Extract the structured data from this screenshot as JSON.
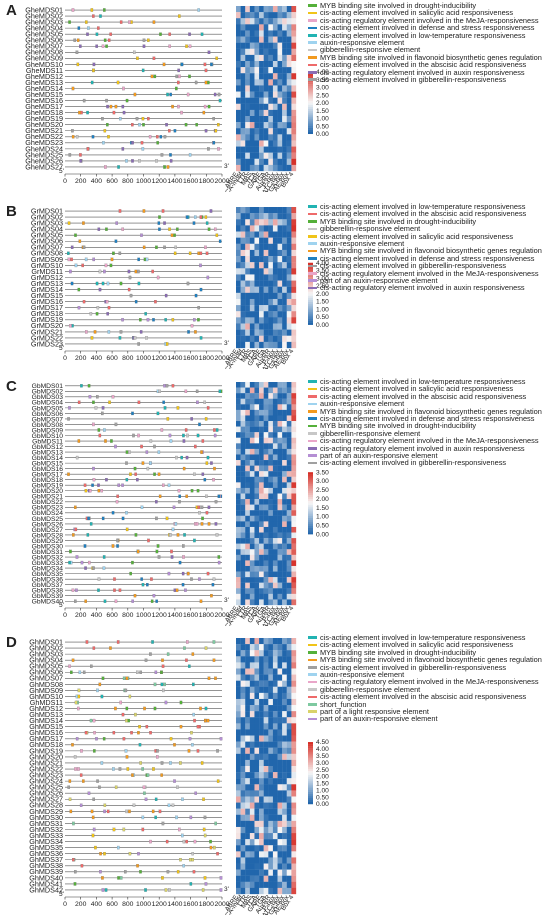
{
  "panels": [
    {
      "letter": "A",
      "genes": [
        "GheMDS01",
        "GheMDS02",
        "GheMDS03",
        "GheMDS04",
        "GheMDS05",
        "GheMDS06",
        "GheMDS07",
        "GheMDS08",
        "GheMDS09",
        "GheMDS10",
        "GheMDS11",
        "GheMDS12",
        "GheMDS13",
        "GheMDS14",
        "GheMDS15",
        "GheMDS16",
        "GheMDS17",
        "GheMDS18",
        "GheMDS19",
        "GheMDS20",
        "GheMDS21",
        "GheMDS22",
        "GheMDS23",
        "GheMDS24",
        "GheMDS25",
        "GheMDS26",
        "GheMDS27"
      ],
      "elements": [
        "ABRE",
        "CGTCA-motif",
        "LTR",
        "MBS",
        "TCA",
        "GARE",
        "TGA",
        "AuxRR",
        "P-box",
        "TATC-box",
        "TGA-box",
        "AE-box",
        "Box 4"
      ],
      "scale_ticks": [
        "0",
        "200",
        "400",
        "600",
        "800",
        "1000",
        "1200",
        "1400",
        "1600",
        "1800",
        "2000"
      ],
      "end5": "5'",
      "end3": "3'",
      "legend": [
        {
          "label": "MYB binding site involved in drought-inducibility",
          "color": "#55b03a"
        },
        {
          "label": "cis-acting element involved in salicylic acid responsiveness",
          "color": "#f0c419"
        },
        {
          "label": "cis-acting regulatory element involved in the MeJA-responsiveness",
          "color": "#e9a6c9"
        },
        {
          "label": "cis-acting element involved in defense and stress responsiveness",
          "color": "#1f7fc0"
        },
        {
          "label": "cis-acting element involved in low-temperature responsiveness",
          "color": "#21b3b2"
        },
        {
          "label": "auxin-responsive element",
          "color": "#9fd3ef"
        },
        {
          "label": "gibberellin-responsive element",
          "color": "#c7c7c7"
        },
        {
          "label": "MYB binding site involved in flavonoid biosynthetic genes regulation",
          "color": "#f29a1f"
        },
        {
          "label": "cis-acting element involved in the abscisic acid responsiveness",
          "color": "#ee6a6a"
        },
        {
          "label": "cis-acting regulatory element involved in auxin responsiveness",
          "color": "#8a6cb4"
        },
        {
          "label": "cis-acting element involved in gibberellin-responsiveness",
          "color": "#a0a0a0"
        }
      ],
      "colorbar": [
        "4.00",
        "3.50",
        "3.00",
        "2.50",
        "2.00",
        "1.50",
        "1.00",
        "0.50",
        "0.00"
      ],
      "colorbar_max": 4.0
    },
    {
      "letter": "B",
      "genes": [
        "GrMDS01",
        "GrMDS02",
        "GrMDS03",
        "GrMDS04",
        "GrMDS05",
        "GrMDS06",
        "GrMDS07",
        "GrMDS08",
        "GrMDS09",
        "GrMDS10",
        "GrMDS11",
        "GrMDS12",
        "GrMDS13",
        "GrMDS14",
        "GrMDS15",
        "GrMDS16",
        "GrMDS17",
        "GrMDS18",
        "GrMDS19",
        "GrMDS20",
        "GrMDS21",
        "GrMDS22",
        "GrMDS23"
      ],
      "elements": [
        "ABRE",
        "CGTCA-motif",
        "LTR",
        "MBS",
        "TCA",
        "GARE",
        "TGA",
        "AuxRR",
        "P-box",
        "TATC-box",
        "TGA-box",
        "AE-box",
        "Box 4"
      ],
      "scale_ticks": [
        "0",
        "200",
        "400",
        "600",
        "800",
        "1000",
        "1200",
        "1400",
        "1600",
        "1800",
        "2000"
      ],
      "end5": "5'",
      "end3": "3'",
      "legend": [
        {
          "label": "cis-acting element involved in low-temperature responsiveness",
          "color": "#21b3b2"
        },
        {
          "label": "cis-acting element involved in the abscisic acid responsiveness",
          "color": "#ee6a6a"
        },
        {
          "label": "MYB binding site involved in drought-inducibility",
          "color": "#55b03a"
        },
        {
          "label": "gibberellin-responsive element",
          "color": "#c7c7c7"
        },
        {
          "label": "cis-acting element involved in salicylic acid responsiveness",
          "color": "#f0c419"
        },
        {
          "label": "auxin-responsive element",
          "color": "#9fd3ef"
        },
        {
          "label": "MYB binding site involved in flavonoid biosynthetic genes regulation",
          "color": "#f29a1f"
        },
        {
          "label": "cis-acting element involved in defense and stress responsiveness",
          "color": "#1f7fc0"
        },
        {
          "label": "cis-acting element involved in gibberellin-responsiveness",
          "color": "#a0a0a0"
        },
        {
          "label": "cis-acting regulatory element involved in the MeJA-responsiveness",
          "color": "#e9a6c9"
        },
        {
          "label": "part of an auxin-responsive element",
          "color": "#b58fd4"
        },
        {
          "label": "cis-acting regulatory element involved in auxin responsiveness",
          "color": "#8a6cb4"
        }
      ],
      "colorbar": [
        "4.00",
        "3.50",
        "3.00",
        "2.50",
        "2.00",
        "1.50",
        "1.00",
        "0.50",
        "0.00"
      ],
      "colorbar_max": 4.0
    },
    {
      "letter": "C",
      "genes": [
        "GbMDS01",
        "GbMDS02",
        "GbMDS03",
        "GbMDS04",
        "GbMDS05",
        "GbMDS06",
        "GbMDS07",
        "GbMDS08",
        "GbMDS09",
        "GbMDS10",
        "GbMDS11",
        "GbMDS12",
        "GbMDS13",
        "GbMDS14",
        "GbMDS15",
        "GbMDS16",
        "GbMDS17",
        "GbMDS18",
        "GbMDS19",
        "GbMDS20",
        "GbMDS21",
        "GbMDS22",
        "GbMDS23",
        "GbMDS24",
        "GbMDS25",
        "GbMDS26",
        "GbMDS27",
        "GbMDS28",
        "GbMDS29",
        "GbMDS30",
        "GbMDS31",
        "GbMDS32",
        "GbMDS33",
        "GbMDS34",
        "GbMDS35",
        "GbMDS36",
        "GbMDS37",
        "GbMDS38",
        "GbMDS39",
        "GbMDS40"
      ],
      "elements": [
        "ABRE",
        "CGTCA-motif",
        "LTR",
        "MBS",
        "TCA",
        "GARE",
        "TGA",
        "AuxRR",
        "P-box",
        "TATC-box",
        "TGA-box",
        "AE-box",
        "Box 4"
      ],
      "scale_ticks": [
        "0",
        "200",
        "400",
        "600",
        "800",
        "1000",
        "1200",
        "1400",
        "1600",
        "1800",
        "2000"
      ],
      "end5": "5'",
      "end3": "3'",
      "legend": [
        {
          "label": "cis-acting element involved in low-temperature responsiveness",
          "color": "#21b3b2"
        },
        {
          "label": "cis-acting element involved in salicylic acid responsiveness",
          "color": "#f0c419"
        },
        {
          "label": "cis-acting element involved in the abscisic acid responsiveness",
          "color": "#ee6a6a"
        },
        {
          "label": "auxin-responsive element",
          "color": "#9fd3ef"
        },
        {
          "label": "MYB binding site involved in flavonoid biosynthetic genes regulation",
          "color": "#f29a1f"
        },
        {
          "label": "cis-acting element involved in defense and stress responsiveness",
          "color": "#1f7fc0"
        },
        {
          "label": "MYB binding site involved in drought-inducibility",
          "color": "#55b03a"
        },
        {
          "label": "gibberellin-responsive element",
          "color": "#c7c7c7"
        },
        {
          "label": "cis-acting regulatory element involved in the MeJA-responsiveness",
          "color": "#e9a6c9"
        },
        {
          "label": "cis-acting regulatory element involved in auxin responsiveness",
          "color": "#8a6cb4"
        },
        {
          "label": "part of an auxin-responsive element",
          "color": "#b58fd4"
        },
        {
          "label": "cis-acting element involved in gibberellin-responsiveness",
          "color": "#a0a0a0"
        }
      ],
      "colorbar": [
        "3.50",
        "3.00",
        "2.50",
        "2.00",
        "1.50",
        "1.00",
        "0.50",
        "0.00"
      ],
      "colorbar_max": 3.5
    },
    {
      "letter": "D",
      "genes": [
        "GhMDS01",
        "GhMDS02",
        "GhMDS03",
        "GhMDS04",
        "GhMDS05",
        "GhMDS06",
        "GhMDS07",
        "GhMDS08",
        "GhMDS09",
        "GhMDS10",
        "GhMDS11",
        "GhMDS12",
        "GhMDS13",
        "GhMDS14",
        "GhMDS15",
        "GhMDS16",
        "GhMDS17",
        "GhMDS18",
        "GhMDS19",
        "GhMDS20",
        "GhMDS21",
        "GhMDS22",
        "GhMDS23",
        "GhMDS24",
        "GhMDS25",
        "GhMDS26",
        "GhMDS27",
        "GhMDS28",
        "GhMDS29",
        "GhMDS30",
        "GhMDS31",
        "GhMDS32",
        "GhMDS33",
        "GhMDS34",
        "GhMDS35",
        "GhMDS36",
        "GhMDS37",
        "GhMDS38",
        "GhMDS39",
        "GhMDS40",
        "GhMDS41",
        "GhMDS42"
      ],
      "elements": [
        "ABRE",
        "CGTCA-motif",
        "LTR",
        "MBS",
        "TCA",
        "GARE",
        "TGA",
        "AuxRR",
        "P-box",
        "TATC-box",
        "TGA-box",
        "AE-box",
        "Box 4"
      ],
      "scale_ticks": [
        "0",
        "200",
        "400",
        "600",
        "800",
        "1000",
        "1200",
        "1400",
        "1600",
        "1800",
        "2000"
      ],
      "end5": "5'",
      "end3": "3'",
      "legend": [
        {
          "label": "cis-acting element involved in low-temperature responsiveness",
          "color": "#21b3b2"
        },
        {
          "label": "cis-acting element involved in salicylic acid responsiveness",
          "color": "#f0c419"
        },
        {
          "label": "MYB binding site involved in drought-inducibility",
          "color": "#55b03a"
        },
        {
          "label": "MYB binding site involved in flavonoid biosynthetic genes regulation",
          "color": "#f29a1f"
        },
        {
          "label": "cis-acting element involved in gibberellin-responsiveness",
          "color": "#a0a0a0"
        },
        {
          "label": "auxin-responsive element",
          "color": "#9fd3ef"
        },
        {
          "label": "cis-acting regulatory element involved in the MeJA-responsiveness",
          "color": "#e9a6c9"
        },
        {
          "label": "gibberellin-responsive element",
          "color": "#c7c7c7"
        },
        {
          "label": "cis-acting element involved in the abscisic acid responsiveness",
          "color": "#ee6a6a"
        },
        {
          "label": "short_function",
          "color": "#7ec9a0"
        },
        {
          "label": "part of a light responsive element",
          "color": "#d9d36a"
        },
        {
          "label": "part of an auxin-responsive element",
          "color": "#b58fd4"
        }
      ],
      "colorbar": [
        "4.50",
        "4.00",
        "3.50",
        "3.00",
        "2.50",
        "2.00",
        "1.50",
        "1.00",
        "0.50",
        "0.00"
      ],
      "colorbar_max": 4.5
    }
  ]
}
